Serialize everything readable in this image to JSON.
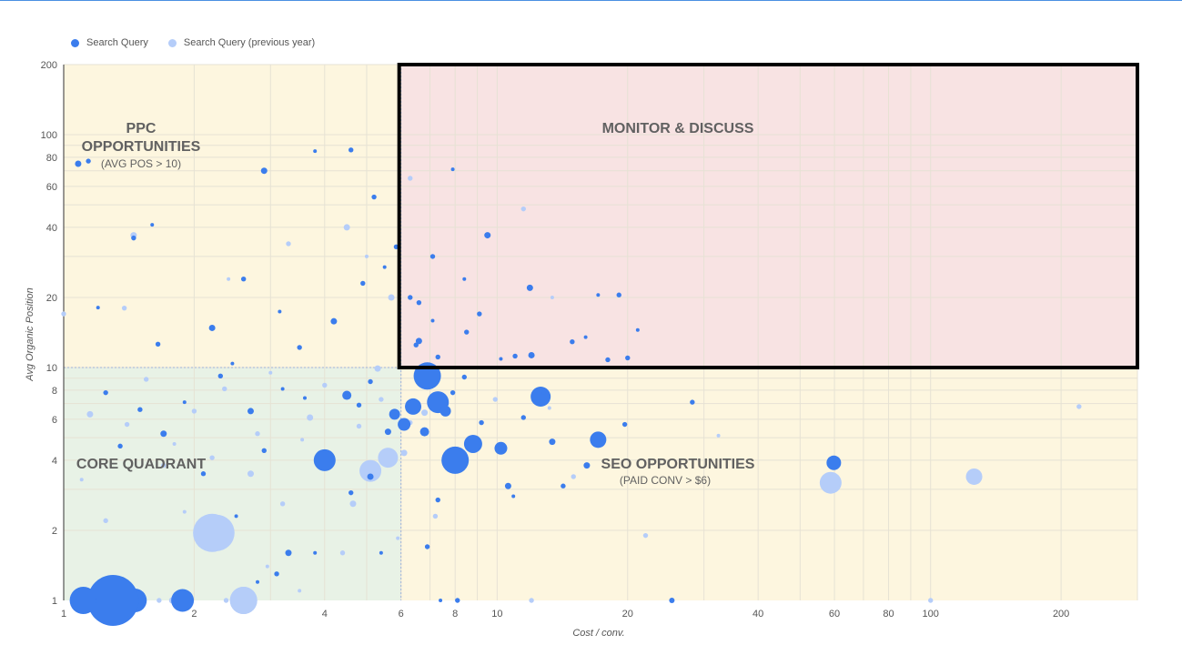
{
  "legend": {
    "current_label": "Search Query",
    "previous_label": "Search Query (previous year)"
  },
  "colors": {
    "current": "#3b7ded",
    "previous": "#b5cdf9",
    "ppc_bg": "#fdf6df",
    "seo_bg": "#fdf6df",
    "core_bg": "#e8f2e6",
    "monitor_bg": "#f8e3e3",
    "monitor_border": "#000000",
    "grid": "#e6e2d4"
  },
  "chart_data": {
    "type": "scatter",
    "xlabel": "Cost / conv.",
    "ylabel": "Avg Organic Position",
    "x_scale": "log",
    "y_scale": "log",
    "xlim": [
      1,
      300
    ],
    "ylim": [
      1,
      200
    ],
    "x_ticks": [
      1,
      2,
      4,
      6,
      8,
      10,
      20,
      40,
      60,
      80,
      100,
      200
    ],
    "y_ticks": [
      1,
      2,
      4,
      6,
      8,
      10,
      20,
      40,
      60,
      80,
      100,
      200
    ],
    "thresholds": {
      "x": 6,
      "y": 10
    },
    "quadrants": [
      {
        "title": "PPC\nOPPORTUNITIES",
        "subtitle": "(AVG POS > 10)"
      },
      {
        "title": "MONITOR & DISCUSS",
        "subtitle": ""
      },
      {
        "title": "CORE QUADRANT",
        "subtitle": ""
      },
      {
        "title": "SEO OPPORTUNITIES",
        "subtitle": "(PAID CONV > $6)"
      }
    ],
    "series": [
      {
        "name": "Search Query",
        "points": [
          [
            1.08,
            75
          ],
          [
            1.14,
            77
          ],
          [
            1.45,
            36
          ],
          [
            1.6,
            41
          ],
          [
            2.6,
            24
          ],
          [
            2.9,
            70
          ],
          [
            3.8,
            85
          ],
          [
            4.6,
            86
          ],
          [
            5.2,
            54
          ],
          [
            7.9,
            71
          ],
          [
            9.5,
            37
          ],
          [
            7.1,
            30
          ],
          [
            8.4,
            24
          ],
          [
            6.6,
            19
          ],
          [
            6.3,
            20
          ],
          [
            11.9,
            22
          ],
          [
            9.1,
            17
          ],
          [
            8.5,
            14.2
          ],
          [
            17.1,
            20.5
          ],
          [
            19.1,
            20.5
          ],
          [
            6.6,
            13
          ],
          [
            21.1,
            14.5
          ],
          [
            11,
            11.2
          ],
          [
            7.3,
            11.1
          ],
          [
            10.2,
            10.9
          ],
          [
            12,
            11.3
          ],
          [
            14.9,
            12.9
          ],
          [
            16,
            13.5
          ],
          [
            18,
            10.8
          ],
          [
            20,
            11
          ],
          [
            6.9,
            9.3
          ],
          [
            7.9,
            7.8
          ],
          [
            8.4,
            9.1
          ],
          [
            12.6,
            7.5
          ],
          [
            28.2,
            7.1
          ],
          [
            6.4,
            6.8
          ],
          [
            7.3,
            7.1
          ],
          [
            7.6,
            6.5
          ],
          [
            6.8,
            5.3
          ],
          [
            8.8,
            4.7
          ],
          [
            7.8,
            4.1
          ],
          [
            10.2,
            4.5
          ],
          [
            17.1,
            4.9
          ],
          [
            59.8,
            3.9
          ],
          [
            6.1,
            5.7
          ],
          [
            5.6,
            5.3
          ],
          [
            5.8,
            6.3
          ],
          [
            4.5,
            7.6
          ],
          [
            3.6,
            7.4
          ],
          [
            4.1,
            3.9
          ],
          [
            10.6,
            3.1
          ],
          [
            10.9,
            2.8
          ],
          [
            7.3,
            2.7
          ],
          [
            6.9,
            1.7
          ],
          [
            5.4,
            1.6
          ],
          [
            3.3,
            1.6
          ],
          [
            3.1,
            1.3
          ],
          [
            2.8,
            1.2
          ],
          [
            25.3,
            1
          ],
          [
            1.11,
            1
          ],
          [
            1.46,
            1
          ],
          [
            1.88,
            1
          ],
          [
            1.21,
            1
          ],
          [
            7.4,
            1
          ],
          [
            8.1,
            1
          ],
          [
            16.1,
            3.8
          ],
          [
            12.8,
            7.8
          ],
          [
            5.1,
            8.7
          ],
          [
            4.8,
            6.9
          ],
          [
            3.2,
            8.1
          ],
          [
            2.7,
            6.5
          ],
          [
            2.3,
            9.2
          ],
          [
            1.9,
            7.1
          ],
          [
            1.5,
            6.6
          ],
          [
            1.25,
            7.8
          ],
          [
            1.7,
            5.2
          ],
          [
            2.1,
            3.5
          ],
          [
            1.35,
            4.6
          ],
          [
            2.45,
            10.4
          ],
          [
            3.5,
            12.2
          ],
          [
            4.2,
            15.8
          ],
          [
            5.5,
            27
          ],
          [
            5.85,
            33
          ],
          [
            4.9,
            23
          ],
          [
            3.15,
            17.4
          ],
          [
            2.2,
            14.8
          ],
          [
            1.65,
            12.6
          ],
          [
            1.2,
            18.1
          ],
          [
            9.2,
            5.8
          ],
          [
            11.5,
            6.1
          ],
          [
            13.4,
            4.8
          ],
          [
            19.7,
            5.7
          ],
          [
            14.2,
            3.1
          ],
          [
            3.8,
            1.6
          ],
          [
            4.6,
            2.9
          ],
          [
            5.1,
            3.4
          ],
          [
            2.5,
            2.3
          ],
          [
            2.9,
            4.4
          ],
          [
            6.5,
            12.5
          ],
          [
            7.1,
            15.9
          ]
        ]
      },
      {
        "name": "Search Query (previous year)",
        "points": [
          [
            1.45,
            37
          ],
          [
            1.38,
            18
          ],
          [
            1.0,
            17
          ],
          [
            2.4,
            24
          ],
          [
            3.3,
            34
          ],
          [
            4.5,
            40
          ],
          [
            5.0,
            30
          ],
          [
            6.3,
            65
          ],
          [
            11.5,
            48
          ],
          [
            13.4,
            20
          ],
          [
            5.7,
            20
          ],
          [
            2.2,
            1.95
          ],
          [
            2.6,
            1
          ],
          [
            1.3,
            1
          ],
          [
            1.66,
            1
          ],
          [
            1.78,
            1
          ],
          [
            2.37,
            1
          ],
          [
            3.9,
            4.3
          ],
          [
            5.1,
            3.6
          ],
          [
            5.6,
            4.1
          ],
          [
            6.1,
            4.3
          ],
          [
            5.9,
            1.85
          ],
          [
            7.2,
            2.3
          ],
          [
            12,
            1
          ],
          [
            32.4,
            5.1
          ],
          [
            58.8,
            3.2
          ],
          [
            100,
            1
          ],
          [
            126,
            3.4
          ],
          [
            220,
            6.8
          ],
          [
            4.8,
            5.6
          ],
          [
            3.7,
            6.1
          ],
          [
            2.8,
            5.2
          ],
          [
            2.2,
            4.1
          ],
          [
            1.8,
            4.7
          ],
          [
            1.4,
            5.7
          ],
          [
            1.15,
            6.3
          ],
          [
            1.9,
            2.4
          ],
          [
            3.2,
            2.6
          ],
          [
            4.4,
            1.6
          ],
          [
            3.5,
            1.1
          ],
          [
            6.8,
            6.4
          ],
          [
            9.9,
            7.3
          ],
          [
            13.2,
            6.7
          ],
          [
            15,
            3.4
          ],
          [
            22,
            1.9
          ],
          [
            2.7,
            3.5
          ],
          [
            2.0,
            6.5
          ],
          [
            1.55,
            8.9
          ],
          [
            3.0,
            9.5
          ],
          [
            4.0,
            8.4
          ],
          [
            5.3,
            9.9
          ],
          [
            1.1,
            3.3
          ],
          [
            1.7,
            3.8
          ],
          [
            2.35,
            8.1
          ],
          [
            3.55,
            4.9
          ],
          [
            4.65,
            2.6
          ],
          [
            1.25,
            2.2
          ],
          [
            2.95,
            1.4
          ],
          [
            5.4,
            7.3
          ],
          [
            6.3,
            5.8
          ]
        ]
      }
    ]
  }
}
